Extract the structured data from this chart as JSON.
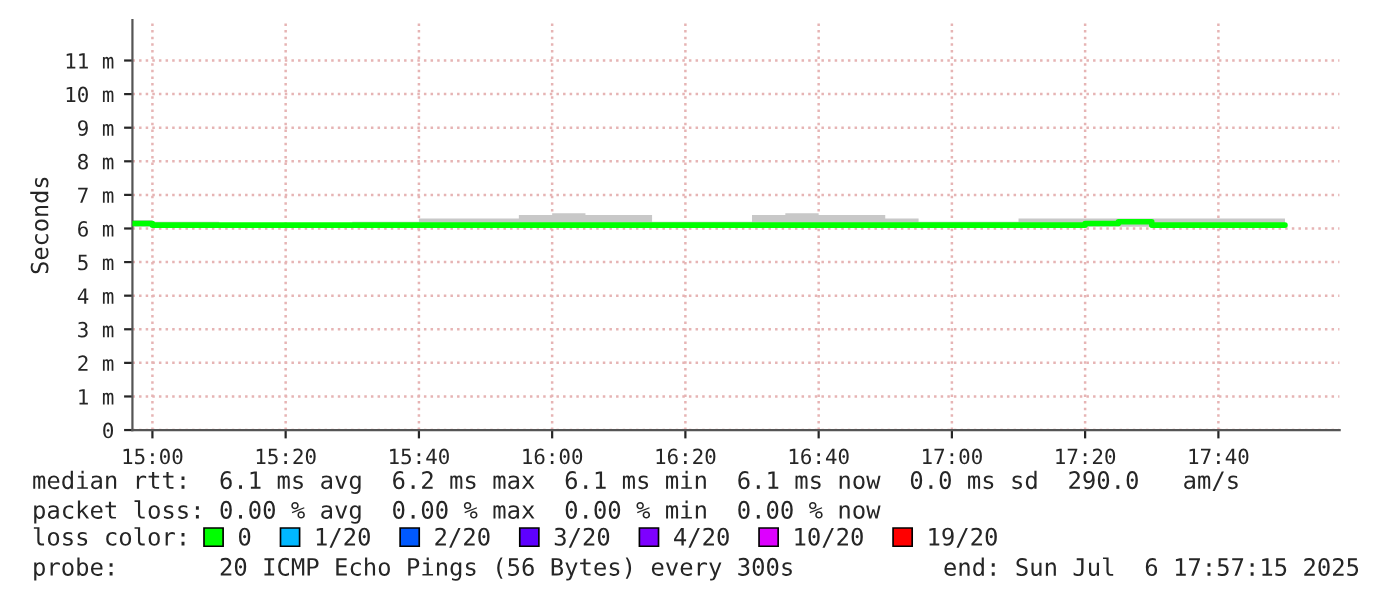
{
  "chart_data": {
    "type": "step",
    "ylabel": "Seconds",
    "x": [
      14.95,
      15.0,
      15.0833,
      15.1667,
      15.25,
      15.3333,
      15.4167,
      15.5,
      15.5833,
      15.6667,
      15.75,
      15.8333,
      15.9167,
      16.0,
      16.0833,
      16.1667,
      16.25,
      16.3333,
      16.4167,
      16.5,
      16.5833,
      16.6667,
      16.75,
      16.8333,
      16.9167,
      17.0,
      17.0833,
      17.1667,
      17.25,
      17.3333,
      17.4167,
      17.5,
      17.5833,
      17.6667,
      17.75,
      17.8333
    ],
    "series": [
      {
        "name": "0",
        "color": "#00ff00",
        "values": [
          6.15,
          6.1,
          6.1,
          6.1,
          6.1,
          6.1,
          6.1,
          6.1,
          6.1,
          6.1,
          6.1,
          6.1,
          6.1,
          6.1,
          6.1,
          6.1,
          6.1,
          6.1,
          6.1,
          6.1,
          6.1,
          6.1,
          6.1,
          6.1,
          6.1,
          6.1,
          6.1,
          6.1,
          6.1,
          6.15,
          6.2,
          6.1,
          6.1,
          6.1,
          6.1,
          6.1
        ],
        "lower": [
          6.05,
          6.05,
          6.05,
          6.05,
          6.05,
          6.05,
          6.05,
          6.05,
          6.05,
          6.05,
          6.05,
          6.05,
          6.05,
          6.05,
          6.05,
          6.05,
          6.05,
          6.05,
          6.05,
          6.05,
          6.05,
          6.05,
          6.05,
          6.05,
          6.05,
          6.05,
          6.05,
          6.05,
          6.05,
          6.05,
          6.05,
          6.05,
          6.05,
          6.05,
          6.05,
          6.05
        ],
        "upper": [
          6.25,
          6.2,
          6.2,
          6.15,
          6.15,
          6.15,
          6.15,
          6.2,
          6.2,
          6.3,
          6.3,
          6.3,
          6.4,
          6.45,
          6.4,
          6.4,
          6.2,
          6.2,
          6.2,
          6.4,
          6.45,
          6.4,
          6.4,
          6.3,
          6.2,
          6.2,
          6.2,
          6.3,
          6.3,
          6.3,
          6.3,
          6.3,
          6.3,
          6.3,
          6.3,
          6.3
        ]
      },
      {
        "name": "1/20",
        "color": "#00b8ff",
        "values": [
          null,
          null,
          null,
          null,
          null,
          null,
          null,
          null,
          null,
          null,
          null,
          null,
          null,
          null,
          null,
          null,
          null,
          null,
          null,
          null,
          null,
          null,
          null,
          null,
          null,
          null,
          null,
          null,
          null,
          null,
          null,
          null,
          null,
          null,
          null,
          null
        ]
      },
      {
        "name": "2/20",
        "color": "#0059ff",
        "values": [
          null,
          null,
          null,
          null,
          null,
          null,
          null,
          null,
          null,
          null,
          null,
          null,
          null,
          null,
          null,
          null,
          null,
          null,
          null,
          null,
          null,
          null,
          null,
          null,
          null,
          null,
          null,
          null,
          null,
          null,
          null,
          null,
          null,
          null,
          null,
          null
        ]
      },
      {
        "name": "3/20",
        "color": "#5e00ff",
        "values": [
          null,
          null,
          null,
          null,
          null,
          null,
          null,
          null,
          null,
          null,
          null,
          null,
          null,
          null,
          null,
          null,
          null,
          null,
          null,
          null,
          null,
          null,
          null,
          null,
          null,
          null,
          null,
          null,
          null,
          null,
          null,
          null,
          null,
          null,
          null,
          null
        ]
      },
      {
        "name": "4/20",
        "color": "#7e00ff",
        "values": [
          null,
          null,
          null,
          null,
          null,
          null,
          null,
          null,
          null,
          null,
          null,
          null,
          null,
          null,
          null,
          null,
          null,
          null,
          null,
          null,
          null,
          null,
          null,
          null,
          null,
          null,
          null,
          null,
          null,
          null,
          null,
          null,
          null,
          null,
          null,
          null
        ]
      },
      {
        "name": "10/20",
        "color": "#dd00ff",
        "values": [
          null,
          null,
          null,
          null,
          null,
          null,
          null,
          null,
          null,
          null,
          null,
          null,
          null,
          null,
          null,
          null,
          null,
          null,
          null,
          null,
          null,
          null,
          null,
          null,
          null,
          null,
          null,
          null,
          null,
          null,
          null,
          null,
          null,
          null,
          null,
          null
        ]
      },
      {
        "name": "19/20",
        "color": "#ff0000",
        "values": [
          null,
          null,
          null,
          null,
          null,
          null,
          null,
          null,
          null,
          null,
          null,
          null,
          null,
          null,
          null,
          null,
          null,
          null,
          null,
          null,
          null,
          null,
          null,
          null,
          null,
          null,
          null,
          null,
          null,
          null,
          null,
          null,
          null,
          null,
          null,
          null
        ]
      }
    ],
    "legend": "bottom",
    "legend_title": "loss color:",
    "grid": true,
    "xlim": [
      14.95,
      17.97
    ],
    "xticks": [
      {
        "value": 15,
        "label": "15:00"
      },
      {
        "value": 15.3333,
        "label": "15:20"
      },
      {
        "value": 15.6667,
        "label": "15:40"
      },
      {
        "value": 16,
        "label": "16:00"
      },
      {
        "value": 16.3333,
        "label": "16:20"
      },
      {
        "value": 16.6667,
        "label": "16:40"
      },
      {
        "value": 17,
        "label": "17:00"
      },
      {
        "value": 17.3333,
        "label": "17:20"
      },
      {
        "value": 17.6667,
        "label": "17:40"
      }
    ],
    "ylim": [
      0,
      12.2
    ],
    "yticks": [
      0,
      {
        "value": 1,
        "label": "1 m"
      },
      {
        "value": 2,
        "label": "2 m"
      },
      {
        "value": 3,
        "label": "3 m"
      },
      {
        "value": 4,
        "label": "4 m"
      },
      {
        "value": 5,
        "label": "5 m"
      },
      {
        "value": 6,
        "label": "6 m"
      },
      {
        "value": 7,
        "label": "7 m"
      },
      {
        "value": 8,
        "label": "8 m"
      },
      {
        "value": 9,
        "label": "9 m"
      },
      {
        "value": 10,
        "label": "10 m"
      },
      {
        "value": 11,
        "label": "11 m"
      }
    ],
    "annotations": [
      "median rtt:  6.1 ms avg  6.2 ms max  6.1 ms min  6.1 ms now  0.0 ms sd  290.0   am/s",
      "packet loss: 0.00 % avg  0.00 % max  0.00 % min  0.00 % now",
      "probe:       20 ICMP Echo Pings (56 Bytes) every 300s",
      "end: Sun Jul  6 17:57:15 2025"
    ]
  }
}
